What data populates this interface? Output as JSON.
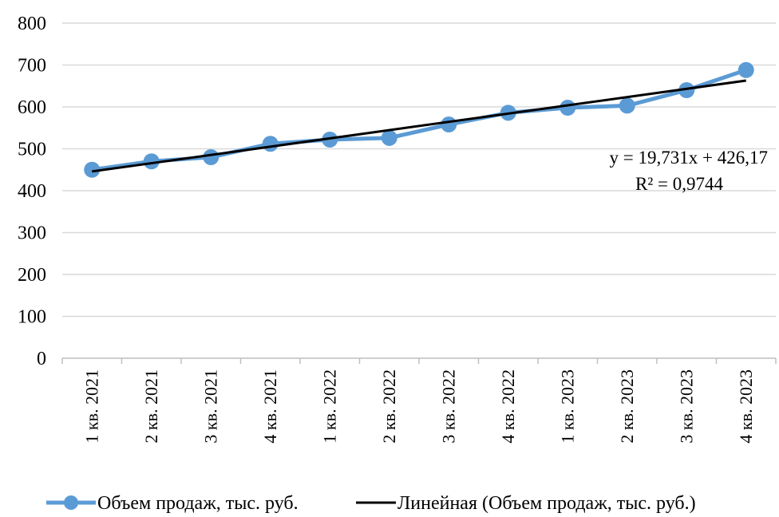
{
  "chart_data": {
    "type": "line",
    "categories": [
      "1 кв. 2021",
      "2 кв. 2021",
      "3 кв. 2021",
      "4 кв. 2021",
      "1 кв. 2022",
      "2 кв. 2022",
      "3 кв. 2022",
      "4 кв. 2022",
      "1 кв. 2023",
      "2 кв. 2023",
      "3 кв. 2023",
      "4 кв. 2023"
    ],
    "series": [
      {
        "name": "Объем продаж, тыс. руб.",
        "values": [
          450,
          470,
          480,
          512,
          522,
          526,
          558,
          586,
          598,
          603,
          640,
          688
        ],
        "color": "#5b9bd5",
        "marker": "circle"
      }
    ],
    "trendline": {
      "name": "Линейная (Объем продаж, тыс. руб.)",
      "type": "linear",
      "slope": 19.731,
      "intercept": 426.17,
      "color": "#000000",
      "equation_label": "y = 19,731x + 426,17",
      "r2_label": "R² = 0,9744"
    },
    "ylim": [
      0,
      800
    ],
    "yticks": [
      "0",
      "100",
      "200",
      "300",
      "400",
      "500",
      "600",
      "700",
      "800"
    ],
    "grid": true,
    "legend": "bottom"
  }
}
